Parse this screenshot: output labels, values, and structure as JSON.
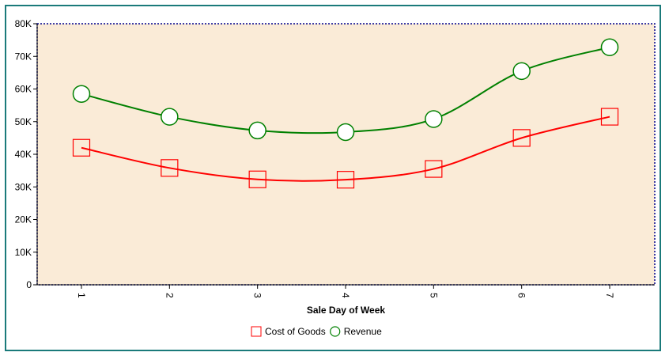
{
  "chart_data": {
    "type": "line",
    "title": "",
    "xlabel": "Sale Day of Week",
    "ylabel": "",
    "categories": [
      "1",
      "2",
      "3",
      "4",
      "5",
      "6",
      "7"
    ],
    "ylim": [
      0,
      80000
    ],
    "yticks": [
      0,
      10000,
      20000,
      30000,
      40000,
      50000,
      60000,
      70000,
      80000
    ],
    "ytick_labels": [
      "0",
      "10K",
      "20K",
      "30K",
      "40K",
      "50K",
      "60K",
      "70K",
      "80K"
    ],
    "grid": false,
    "legend_position": "bottom-center",
    "plot_background": "#FAEBD7",
    "plot_border_color": "#00008B",
    "series": [
      {
        "name": "Cost of Goods",
        "values": [
          42000,
          35800,
          32300,
          32200,
          35500,
          45000,
          51500
        ],
        "color": "#FF0000",
        "marker": "square"
      },
      {
        "name": "Revenue",
        "values": [
          58500,
          51500,
          47300,
          46800,
          50800,
          65500,
          72800
        ],
        "color": "#008000",
        "marker": "circle"
      }
    ]
  }
}
